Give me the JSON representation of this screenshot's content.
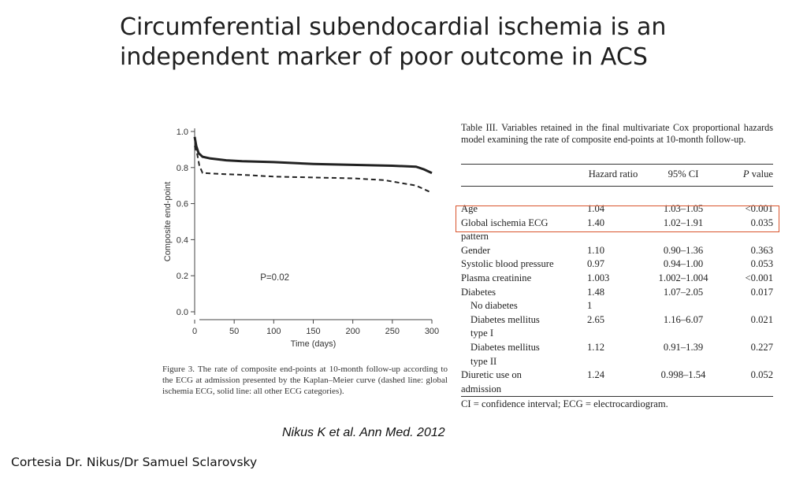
{
  "slide": {
    "title_line1": "Circumferential subendocardial ischemia is an",
    "title_line2": "independent marker of poor outcome in ACS",
    "citation": "Nikus K et al. Ann Med. 2012",
    "credit": "Cortesia  Dr. Nikus/Dr Samuel Sclarovsky"
  },
  "figure": {
    "caption": "Figure 3. The rate of composite end-points at 10-month follow-up according to the ECG at admission presented by the Kaplan–Meier curve (dashed line: global ischemia ECG, solid line: all other ECG categories)."
  },
  "chart_data": {
    "type": "line",
    "xlabel": "Time (days)",
    "ylabel": "Composite end-point",
    "xlim": [
      0,
      300
    ],
    "ylim": [
      0,
      1.0
    ],
    "xticks": [
      0,
      50,
      100,
      150,
      200,
      250,
      300
    ],
    "yticks": [
      0.0,
      0.2,
      0.4,
      0.6,
      0.8,
      1.0
    ],
    "xtick_labels": [
      "0",
      "50",
      "100",
      "150",
      "200",
      "250",
      "300"
    ],
    "ytick_labels": [
      "0.0",
      "0.2",
      "0.4",
      "0.6",
      "0.8",
      "1.0"
    ],
    "annotation": "P=0.02",
    "series": [
      {
        "style": "solid",
        "x": [
          0,
          2,
          5,
          10,
          20,
          40,
          60,
          100,
          150,
          200,
          250,
          280,
          290,
          300
        ],
        "y": [
          0.97,
          0.92,
          0.88,
          0.86,
          0.85,
          0.84,
          0.835,
          0.83,
          0.82,
          0.815,
          0.81,
          0.805,
          0.79,
          0.77
        ]
      },
      {
        "style": "dashed",
        "x": [
          0,
          3,
          6,
          10,
          30,
          60,
          100,
          150,
          200,
          240,
          260,
          280,
          290,
          300
        ],
        "y": [
          0.92,
          0.88,
          0.81,
          0.77,
          0.765,
          0.76,
          0.75,
          0.745,
          0.74,
          0.73,
          0.715,
          0.7,
          0.68,
          0.66
        ]
      }
    ]
  },
  "table": {
    "caption": "Table III. Variables retained in the final multivariate Cox proportional hazards model examining the rate of composite end-points at 10-month follow-up.",
    "headers": [
      "",
      "Hazard ratio",
      "95% CI",
      "P value"
    ],
    "rows": [
      [
        "Age",
        "1.04",
        "1.03–1.05",
        "<0.001"
      ],
      [
        "Global ischemia ECG pattern",
        "1.40",
        "1.02–1.91",
        "0.035"
      ],
      [
        "Gender",
        "1.10",
        "0.90–1.36",
        "0.363"
      ],
      [
        "Systolic blood pressure",
        "0.97",
        "0.94–1.00",
        "0.053"
      ],
      [
        "Plasma creatinine",
        "1.003",
        "1.002–1.004",
        "<0.001"
      ],
      [
        "Diabetes",
        "1.48",
        "1.07–2.05",
        "0.017"
      ],
      [
        "No diabetes",
        "1",
        "",
        ""
      ],
      [
        "Diabetes mellitus type I",
        "2.65",
        "1.16–6.07",
        "0.021"
      ],
      [
        "Diabetes mellitus type II",
        "1.12",
        "0.91–1.39",
        "0.227"
      ],
      [
        "Diuretic use on admission",
        "1.24",
        "0.998–1.54",
        "0.052"
      ]
    ],
    "footnote": "CI = confidence interval; ECG = electrocardiogram.",
    "highlight_color": "#d9542c"
  }
}
